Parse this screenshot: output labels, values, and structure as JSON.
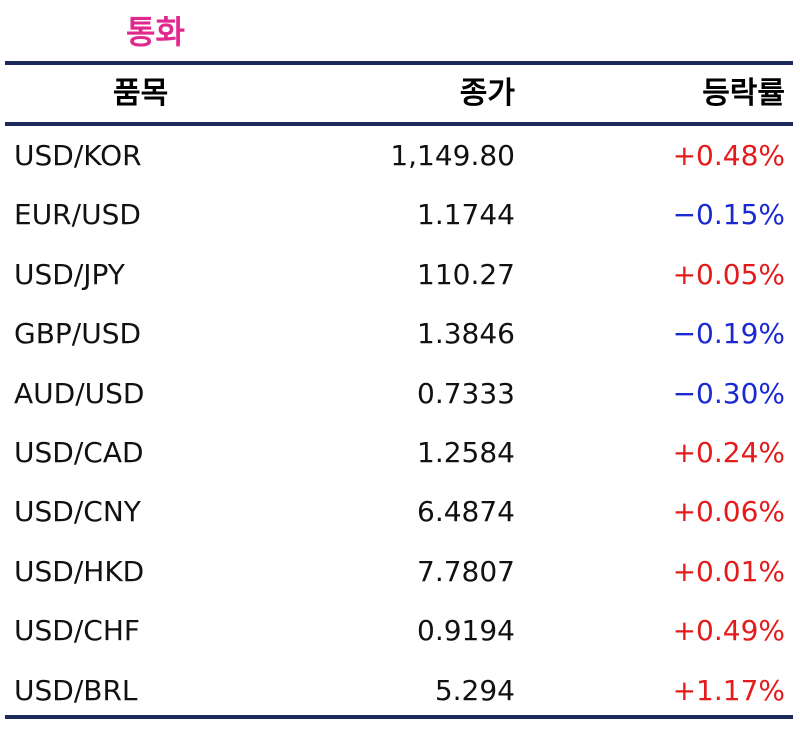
{
  "title": "통화",
  "headers": {
    "name": "품목",
    "close": "종가",
    "change": "등락률"
  },
  "rows": [
    {
      "name": "USD/KOR",
      "close": "1,149.80",
      "change": "+0.48%",
      "dir": "up"
    },
    {
      "name": "EUR/USD",
      "close": "1.1744",
      "change": "−0.15%",
      "dir": "down"
    },
    {
      "name": "USD/JPY",
      "close": "110.27",
      "change": "+0.05%",
      "dir": "up"
    },
    {
      "name": "GBP/USD",
      "close": "1.3846",
      "change": "−0.19%",
      "dir": "down"
    },
    {
      "name": "AUD/USD",
      "close": "0.7333",
      "change": "−0.30%",
      "dir": "down"
    },
    {
      "name": "USD/CAD",
      "close": "1.2584",
      "change": "+0.24%",
      "dir": "up"
    },
    {
      "name": "USD/CNY",
      "close": "6.4874",
      "change": "+0.06%",
      "dir": "up"
    },
    {
      "name": "USD/HKD",
      "close": "7.7807",
      "change": "+0.01%",
      "dir": "up"
    },
    {
      "name": "USD/CHF",
      "close": "0.9194",
      "change": "+0.49%",
      "dir": "up"
    },
    {
      "name": "USD/BRL",
      "close": "5.294",
      "change": "+1.17%",
      "dir": "up"
    }
  ],
  "colors": {
    "title": "#e0288e",
    "rule": "#1b2a5a",
    "up": "#e31b1b",
    "down": "#1a2ad0"
  }
}
